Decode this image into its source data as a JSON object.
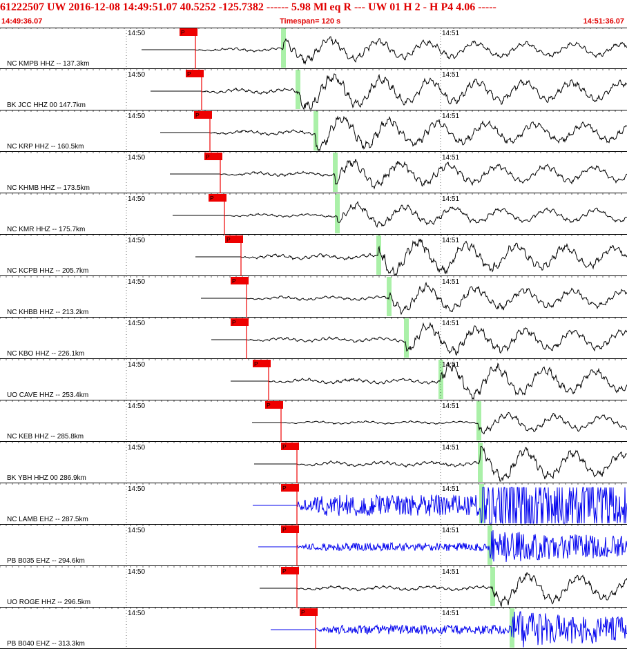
{
  "header": {
    "title": "61222507 UW 2016-12-08 14:49:51.07    40.5252  -125.7382  ------   5.98 Ml   eq   R ---       UW 01   H    2   -   H P4     4.06 -----",
    "start_time": "14:49:36.07",
    "timespan": "Timespan= 120 s",
    "end_time": "14:51:36.07"
  },
  "time_labels": [
    "14:50",
    "14:51"
  ],
  "pick_label": "P",
  "colors": {
    "header_text": "#e00000",
    "pick": "#ee0000",
    "s_marker": "#aaf0a8",
    "trace_black": "#000000",
    "trace_blue": "#0000ee",
    "grid": "#000000"
  },
  "traces": [
    {
      "label": "NC KMPB HHZ -- 137.3km",
      "color": "black",
      "amp": 0.9
    },
    {
      "label": "BK JCC HHZ 00 147.7km",
      "color": "black",
      "amp": 1.3
    },
    {
      "label": "NC KRP HHZ -- 160.5km",
      "color": "black",
      "amp": 1.2
    },
    {
      "label": "NC KHMB HHZ -- 173.5km",
      "color": "black",
      "amp": 1.0
    },
    {
      "label": "NC KMR HHZ -- 175.7km",
      "color": "black",
      "amp": 0.8
    },
    {
      "label": "NC KCPB HHZ -- 205.7km",
      "color": "black",
      "amp": 1.3
    },
    {
      "label": "NC KHBB HHZ -- 213.2km",
      "color": "black",
      "amp": 1.0
    },
    {
      "label": "NC KBO HHZ -- 226.1km",
      "color": "black",
      "amp": 1.1
    },
    {
      "label": "UO CAVE HHZ -- 253.4km",
      "color": "black",
      "amp": 1.2
    },
    {
      "label": "NC KEB HHZ -- 285.8km",
      "color": "black",
      "amp": 0.7
    },
    {
      "label": "BK YBH HHZ 00 286.9km",
      "color": "black",
      "amp": 1.2
    },
    {
      "label": "NC LAMB EHZ -- 287.5km",
      "color": "blue",
      "amp": 1.6
    },
    {
      "label": "PB B035 EHZ -- 294.6km",
      "color": "blue",
      "amp": 1.0
    },
    {
      "label": "UO ROGE HHZ -- 296.5km",
      "color": "black",
      "amp": 1.1
    },
    {
      "label": "PB B040 EHZ -- 313.3km",
      "color": "blue",
      "amp": 1.1
    }
  ]
}
